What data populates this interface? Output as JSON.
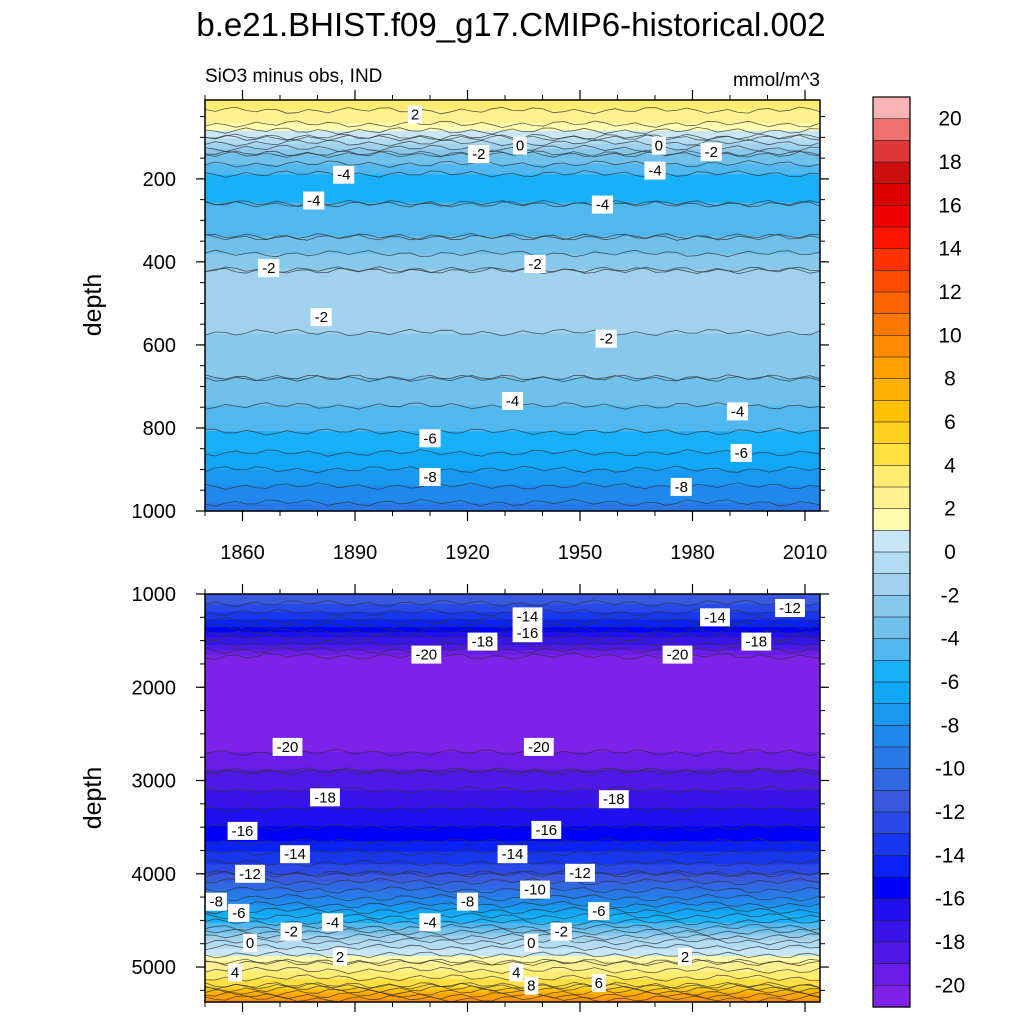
{
  "chart_data": [
    {
      "type": "heatmap",
      "title": "b.e21.BHIST.f09_g17.CMIP6-historical.002",
      "subtitle_left": "SiO3 minus obs, IND",
      "subtitle_right": "mmol/m^3",
      "ylabel": "depth",
      "xlim": [
        1850,
        2014
      ],
      "ylim": [
        1000,
        10
      ],
      "xticks": [
        "1860",
        "1890",
        "1920",
        "1950",
        "1980",
        "2010"
      ],
      "yticks": [
        "200",
        "400",
        "600",
        "800",
        "1000"
      ],
      "depth_profile": [
        {
          "depth": 10,
          "value": 3.5
        },
        {
          "depth": 60,
          "value": 2.5
        },
        {
          "depth": 100,
          "value": 0.0
        },
        {
          "depth": 140,
          "value": -3.0
        },
        {
          "depth": 200,
          "value": -5.5
        },
        {
          "depth": 260,
          "value": -5.0
        },
        {
          "depth": 340,
          "value": -4.0
        },
        {
          "depth": 420,
          "value": -2.0
        },
        {
          "depth": 520,
          "value": -1.5
        },
        {
          "depth": 600,
          "value": -2.3
        },
        {
          "depth": 680,
          "value": -3.0
        },
        {
          "depth": 760,
          "value": -4.2
        },
        {
          "depth": 840,
          "value": -5.5
        },
        {
          "depth": 920,
          "value": -7.5
        },
        {
          "depth": 1000,
          "value": -9.5
        }
      ],
      "contour_labels": [
        {
          "year": 1906,
          "depth": 45,
          "label": "2"
        },
        {
          "year": 1934,
          "depth": 120,
          "label": "0"
        },
        {
          "year": 1971,
          "depth": 120,
          "label": "0"
        },
        {
          "year": 1923,
          "depth": 140,
          "label": "-2"
        },
        {
          "year": 1985,
          "depth": 135,
          "label": "-2"
        },
        {
          "year": 1887,
          "depth": 190,
          "label": "-4"
        },
        {
          "year": 1970,
          "depth": 180,
          "label": "-4"
        },
        {
          "year": 1879,
          "depth": 252,
          "label": "-4"
        },
        {
          "year": 1956,
          "depth": 262,
          "label": "-4"
        },
        {
          "year": 1867,
          "depth": 415,
          "label": "-2"
        },
        {
          "year": 1938,
          "depth": 405,
          "label": "-2"
        },
        {
          "year": 1881,
          "depth": 533,
          "label": "-2"
        },
        {
          "year": 1957,
          "depth": 585,
          "label": "-2"
        },
        {
          "year": 1932,
          "depth": 735,
          "label": "-4"
        },
        {
          "year": 1992,
          "depth": 760,
          "label": "-4"
        },
        {
          "year": 1910,
          "depth": 825,
          "label": "-6"
        },
        {
          "year": 1993,
          "depth": 860,
          "label": "-6"
        },
        {
          "year": 1910,
          "depth": 918,
          "label": "-8"
        },
        {
          "year": 1977,
          "depth": 942,
          "label": "-8"
        }
      ]
    },
    {
      "type": "heatmap",
      "ylabel": "depth",
      "xlim": [
        1850,
        2014
      ],
      "ylim": [
        5375,
        1000
      ],
      "yticks": [
        "1000",
        "2000",
        "3000",
        "4000",
        "5000"
      ],
      "depth_profile": [
        {
          "depth": 1000,
          "value": -11.0
        },
        {
          "depth": 1250,
          "value": -13.5
        },
        {
          "depth": 1500,
          "value": -17.5
        },
        {
          "depth": 1700,
          "value": -20.5
        },
        {
          "depth": 2600,
          "value": -20.5
        },
        {
          "depth": 2900,
          "value": -19.0
        },
        {
          "depth": 3200,
          "value": -17.5
        },
        {
          "depth": 3600,
          "value": -15.5
        },
        {
          "depth": 4000,
          "value": -12.0
        },
        {
          "depth": 4300,
          "value": -8.5
        },
        {
          "depth": 4550,
          "value": -4.5
        },
        {
          "depth": 4750,
          "value": -0.5
        },
        {
          "depth": 4950,
          "value": 2.0
        },
        {
          "depth": 5200,
          "value": 5.0
        },
        {
          "depth": 5375,
          "value": 10.0
        }
      ],
      "contour_labels": [
        {
          "year": 1936,
          "depth": 1240,
          "label": "-14"
        },
        {
          "year": 1986,
          "depth": 1250,
          "label": "-14"
        },
        {
          "year": 2006,
          "depth": 1150,
          "label": "-12"
        },
        {
          "year": 1924,
          "depth": 1510,
          "label": "-18"
        },
        {
          "year": 1936,
          "depth": 1420,
          "label": "-16"
        },
        {
          "year": 1909,
          "depth": 1650,
          "label": "-20"
        },
        {
          "year": 1976,
          "depth": 1650,
          "label": "-20"
        },
        {
          "year": 1997,
          "depth": 1510,
          "label": "-18"
        },
        {
          "year": 1872,
          "depth": 2640,
          "label": "-20"
        },
        {
          "year": 1939,
          "depth": 2640,
          "label": "-20"
        },
        {
          "year": 1882,
          "depth": 3180,
          "label": "-18"
        },
        {
          "year": 1959,
          "depth": 3200,
          "label": "-18"
        },
        {
          "year": 1860,
          "depth": 3540,
          "label": "-16"
        },
        {
          "year": 1941,
          "depth": 3530,
          "label": "-16"
        },
        {
          "year": 1874,
          "depth": 3790,
          "label": "-14"
        },
        {
          "year": 1932,
          "depth": 3790,
          "label": "-14"
        },
        {
          "year": 1862,
          "depth": 4000,
          "label": "-12"
        },
        {
          "year": 1950,
          "depth": 3990,
          "label": "-12"
        },
        {
          "year": 1938,
          "depth": 4170,
          "label": "-10"
        },
        {
          "year": 1853,
          "depth": 4300,
          "label": "-8"
        },
        {
          "year": 1920,
          "depth": 4300,
          "label": "-8"
        },
        {
          "year": 1859,
          "depth": 4420,
          "label": "-6"
        },
        {
          "year": 1955,
          "depth": 4400,
          "label": "-6"
        },
        {
          "year": 1884,
          "depth": 4520,
          "label": "-4"
        },
        {
          "year": 1910,
          "depth": 4520,
          "label": "-4"
        },
        {
          "year": 1873,
          "depth": 4620,
          "label": "-2"
        },
        {
          "year": 1945,
          "depth": 4620,
          "label": "-2"
        },
        {
          "year": 1862,
          "depth": 4740,
          "label": "0"
        },
        {
          "year": 1937,
          "depth": 4740,
          "label": "0"
        },
        {
          "year": 1886,
          "depth": 4890,
          "label": "2"
        },
        {
          "year": 1978,
          "depth": 4890,
          "label": "2"
        },
        {
          "year": 1858,
          "depth": 5060,
          "label": "4"
        },
        {
          "year": 1933,
          "depth": 5060,
          "label": "4"
        },
        {
          "year": 1955,
          "depth": 5170,
          "label": "6"
        },
        {
          "year": 1937,
          "depth": 5200,
          "label": "8"
        }
      ]
    }
  ],
  "colorbar": {
    "labels": [
      "20",
      "18",
      "16",
      "14",
      "12",
      "10",
      "8",
      "6",
      "4",
      "2",
      "0",
      "-2",
      "-4",
      "-6",
      "-8",
      "-10",
      "-12",
      "-14",
      "-16",
      "-18",
      "-20"
    ],
    "levels": [
      21,
      20,
      19,
      18,
      17,
      16,
      15,
      14,
      13,
      12,
      11,
      10,
      9,
      8,
      7,
      6,
      5,
      4,
      3,
      2,
      1,
      0,
      -1,
      -2,
      -3,
      -4,
      -5,
      -6,
      -7,
      -8,
      -9,
      -10,
      -11,
      -12,
      -13,
      -14,
      -15,
      -16,
      -17,
      -18,
      -19,
      -20,
      -21
    ],
    "colors": [
      "#f9b5b5",
      "#f07070",
      "#e03838",
      "#cc1010",
      "#de0000",
      "#f00000",
      "#ff1400",
      "#ff3300",
      "#ff4c00",
      "#ff6400",
      "#ff7800",
      "#ff8c00",
      "#ffa000",
      "#ffb000",
      "#ffc000",
      "#ffd020",
      "#ffe040",
      "#ffec70",
      "#fff090",
      "#fffcb0",
      "#c8e6f5",
      "#b2dcf2",
      "#a0d2ee",
      "#88c8ec",
      "#70c0ec",
      "#50b8ee",
      "#18b0f8",
      "#10a8f6",
      "#1898f0",
      "#2088ec",
      "#2878e8",
      "#3068e4",
      "#3858e0",
      "#2848e8",
      "#1838f0",
      "#0a22f5",
      "#0000ff",
      "#2010f0",
      "#3814ea",
      "#5018e6",
      "#6a1ce8",
      "#7e22ea"
    ]
  }
}
